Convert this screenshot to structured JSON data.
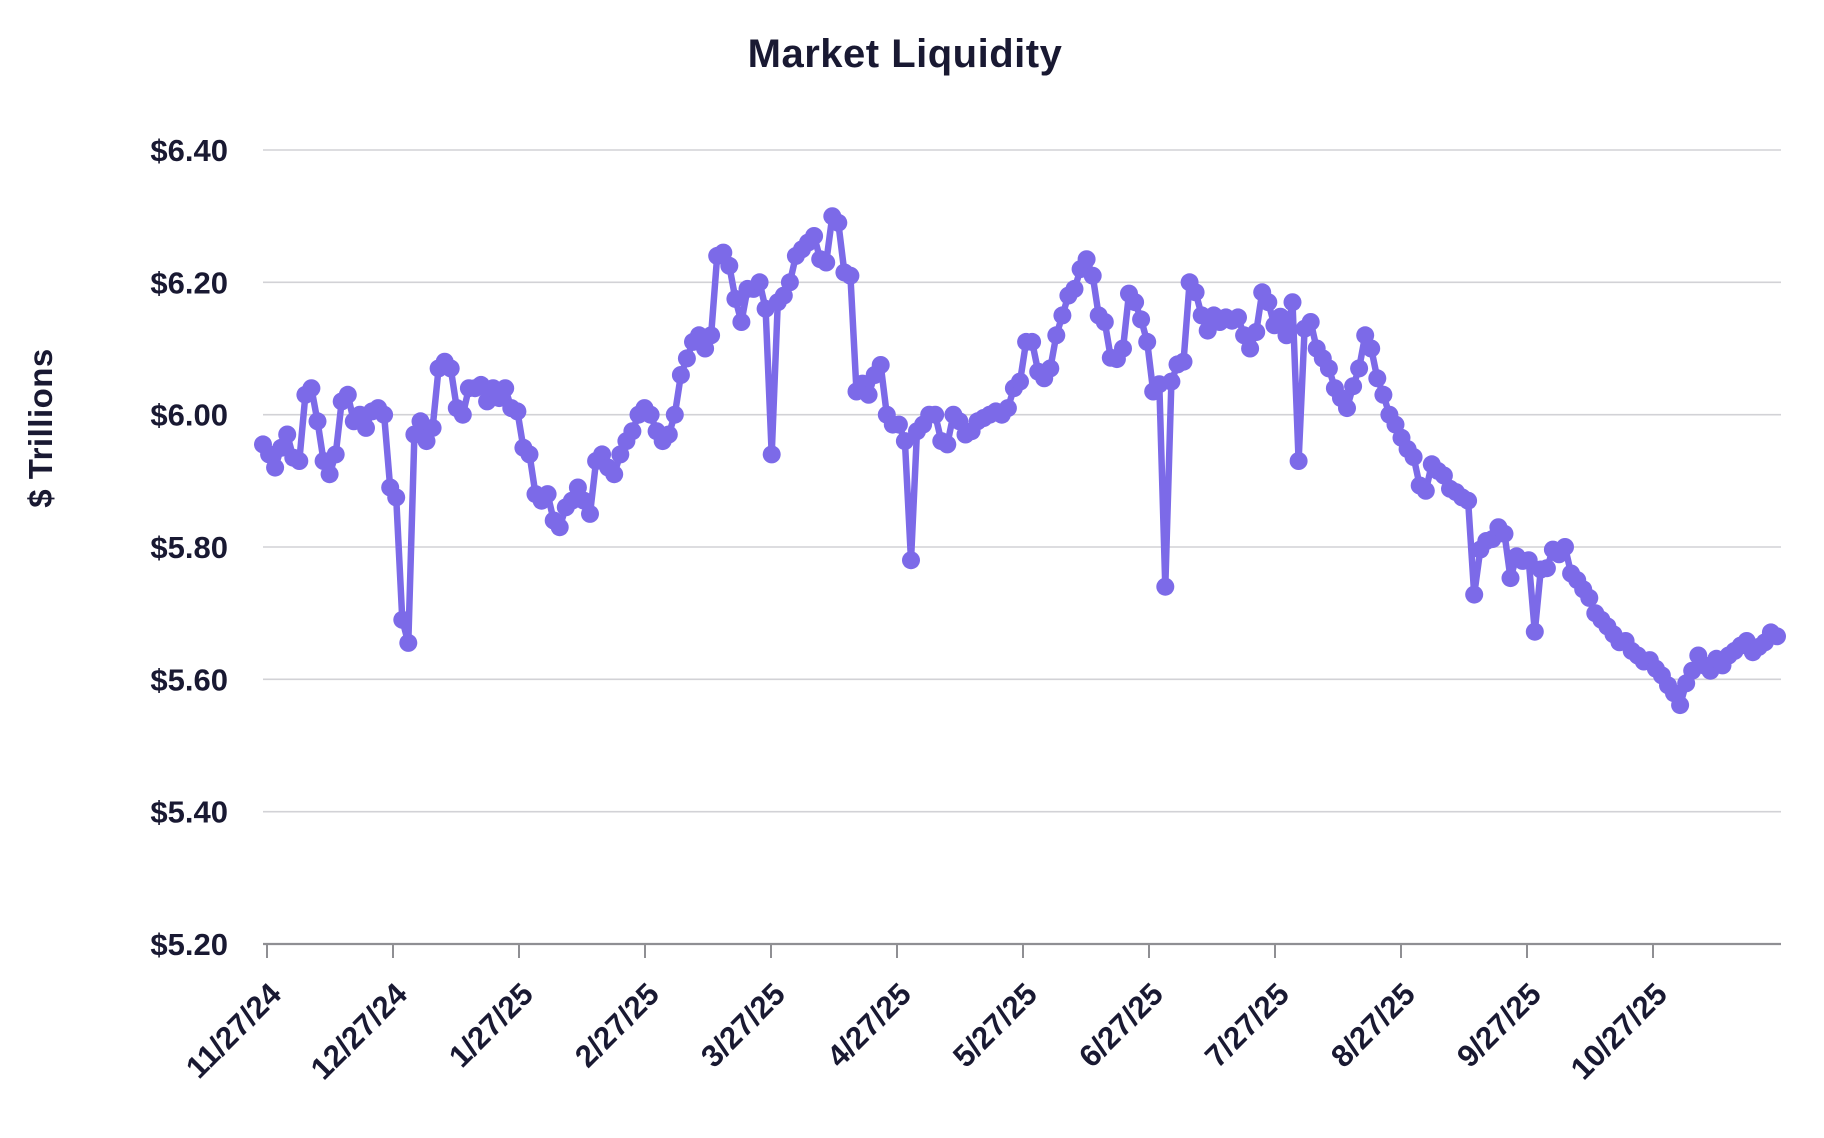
{
  "title": "Market Liquidity",
  "colors": {
    "line": "#7C6AE8",
    "text": "#191932",
    "grid": "#D2D2D6",
    "axis": "#8F8F93",
    "background": "#FFFFFF"
  },
  "chart_data": {
    "type": "line",
    "title": "Market Liquidity",
    "xlabel": "",
    "ylabel": "$ Trillions",
    "legend": "none",
    "grid": "horizontal",
    "marker": "circle",
    "x_tick_labels": [
      "11/27/24",
      "12/27/24",
      "1/27/25",
      "2/27/25",
      "3/27/25",
      "4/27/25",
      "5/27/25",
      "6/27/25",
      "7/27/25",
      "8/27/25",
      "9/27/25",
      "10/27/25"
    ],
    "y_tick_labels": [
      "$6.40",
      "$6.20",
      "$6.00",
      "$5.80",
      "$5.60",
      "$5.40",
      "$5.20"
    ],
    "y_tick_values": [
      6.4,
      6.2,
      6.0,
      5.8,
      5.6,
      5.4,
      5.2
    ],
    "ylim": [
      5.2,
      6.4
    ],
    "series_name": "Market Liquidity ($ Trillions)",
    "values": [
      5.955,
      5.94,
      5.92,
      5.95,
      5.97,
      5.935,
      5.93,
      6.03,
      6.04,
      5.99,
      5.93,
      5.91,
      5.94,
      6.02,
      6.03,
      5.99,
      6.0,
      5.98,
      6.005,
      6.01,
      6.0,
      5.89,
      5.875,
      5.69,
      5.655,
      5.97,
      5.99,
      5.96,
      5.98,
      6.07,
      6.08,
      6.07,
      6.01,
      6.0,
      6.04,
      6.04,
      6.045,
      6.02,
      6.04,
      6.025,
      6.04,
      6.01,
      6.005,
      5.95,
      5.94,
      5.88,
      5.87,
      5.88,
      5.84,
      5.83,
      5.86,
      5.87,
      5.89,
      5.87,
      5.85,
      5.93,
      5.94,
      5.92,
      5.91,
      5.94,
      5.96,
      5.975,
      6.0,
      6.01,
      6.0,
      5.975,
      5.96,
      5.97,
      6.0,
      6.06,
      6.085,
      6.11,
      6.12,
      6.1,
      6.12,
      6.24,
      6.245,
      6.225,
      6.175,
      6.14,
      6.19,
      6.19,
      6.2,
      6.16,
      5.94,
      6.17,
      6.18,
      6.2,
      6.24,
      6.25,
      6.26,
      6.27,
      6.235,
      6.23,
      6.3,
      6.29,
      6.215,
      6.21,
      6.035,
      6.047,
      6.03,
      6.06,
      6.075,
      6.0,
      5.985,
      5.985,
      5.96,
      5.78,
      5.975,
      5.985,
      6.0,
      6.0,
      5.96,
      5.955,
      6.0,
      5.99,
      5.97,
      5.975,
      5.99,
      5.995,
      6.0,
      6.005,
      6.0,
      6.01,
      6.04,
      6.05,
      6.11,
      6.11,
      6.065,
      6.055,
      6.07,
      6.12,
      6.15,
      6.18,
      6.19,
      6.22,
      6.235,
      6.21,
      6.15,
      6.14,
      6.086,
      6.084,
      6.1,
      6.183,
      6.17,
      6.144,
      6.11,
      6.035,
      6.046,
      5.74,
      6.05,
      6.076,
      6.08,
      6.2,
      6.185,
      6.15,
      6.127,
      6.15,
      6.14,
      6.147,
      6.142,
      6.147,
      6.12,
      6.1,
      6.125,
      6.185,
      6.17,
      6.135,
      6.148,
      6.12,
      6.17,
      5.93,
      6.13,
      6.14,
      6.1,
      6.085,
      6.07,
      6.04,
      6.025,
      6.01,
      6.043,
      6.07,
      6.12,
      6.1,
      6.055,
      6.03,
      6.0,
      5.985,
      5.965,
      5.948,
      5.936,
      5.893,
      5.885,
      5.925,
      5.915,
      5.908,
      5.888,
      5.883,
      5.875,
      5.87,
      5.728,
      5.796,
      5.809,
      5.812,
      5.83,
      5.82,
      5.753,
      5.786,
      5.779,
      5.78,
      5.672,
      5.766,
      5.768,
      5.796,
      5.789,
      5.8,
      5.76,
      5.75,
      5.736,
      5.723,
      5.7,
      5.69,
      5.68,
      5.668,
      5.656,
      5.658,
      5.643,
      5.636,
      5.627,
      5.629,
      5.616,
      5.606,
      5.591,
      5.579,
      5.561,
      5.594,
      5.613,
      5.636,
      5.621,
      5.613,
      5.631,
      5.621,
      5.636,
      5.643,
      5.651,
      5.658,
      5.641,
      5.649,
      5.656,
      5.671,
      5.665
    ]
  }
}
